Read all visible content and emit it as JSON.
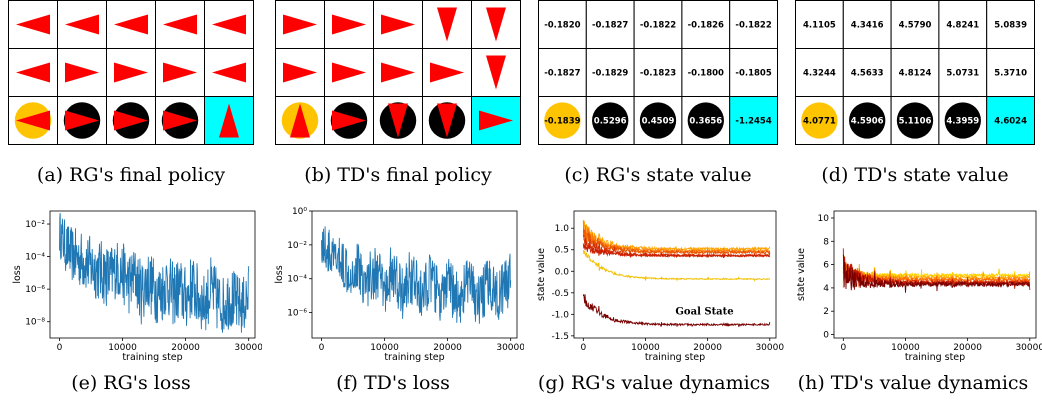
{
  "captions": {
    "a": "(a) RG's final policy",
    "b": "(b) TD's final policy",
    "c": "(c) RG's state value",
    "d": "(d) TD's state value",
    "e": "(e) RG's loss",
    "f": "(f) TD's loss",
    "g": "(g) RG's value dynamics",
    "h": "(h) TD's value dynamics"
  },
  "colors": {
    "arrow": "#ff0000",
    "goal": "#00ffff",
    "start": "#ffc400",
    "cliff": "#000000",
    "loss_line": "#1f77b4"
  },
  "chart_data": [
    {
      "id": "a",
      "type": "table",
      "title": "",
      "rows": 3,
      "cols": 5,
      "arrows": [
        [
          "left",
          "left",
          "left",
          "left",
          "left"
        ],
        [
          "left",
          "right",
          "right",
          "right",
          "left"
        ],
        [
          "left",
          "right",
          "right",
          "right",
          "up"
        ]
      ],
      "cell_kind": [
        [
          "plain",
          "plain",
          "plain",
          "plain",
          "plain"
        ],
        [
          "plain",
          "plain",
          "plain",
          "plain",
          "plain"
        ],
        [
          "start",
          "cliff",
          "cliff",
          "cliff",
          "goal"
        ]
      ]
    },
    {
      "id": "b",
      "type": "table",
      "title": "",
      "rows": 3,
      "cols": 5,
      "arrows": [
        [
          "right",
          "right",
          "right",
          "down",
          "down"
        ],
        [
          "right",
          "right",
          "right",
          "right",
          "down"
        ],
        [
          "up",
          "right",
          "down",
          "down",
          "right"
        ]
      ],
      "cell_kind": [
        [
          "plain",
          "plain",
          "plain",
          "plain",
          "plain"
        ],
        [
          "plain",
          "plain",
          "plain",
          "plain",
          "plain"
        ],
        [
          "start",
          "cliff",
          "cliff",
          "cliff",
          "goal"
        ]
      ]
    },
    {
      "id": "c",
      "type": "table",
      "title": "",
      "values": [
        [
          "-0.1820",
          "-0.1827",
          "-0.1822",
          "-0.1826",
          "-0.1822"
        ],
        [
          "-0.1827",
          "-0.1829",
          "-0.1823",
          "-0.1800",
          "-0.1805"
        ],
        [
          "-0.1839",
          "0.5296",
          "0.4509",
          "0.3656",
          "-1.2454"
        ]
      ],
      "cell_kind": [
        [
          "plain",
          "plain",
          "plain",
          "plain",
          "plain"
        ],
        [
          "plain",
          "plain",
          "plain",
          "plain",
          "plain"
        ],
        [
          "start",
          "cliff",
          "cliff",
          "cliff",
          "goal"
        ]
      ]
    },
    {
      "id": "d",
      "type": "table",
      "title": "",
      "values": [
        [
          "4.1105",
          "4.3416",
          "4.5790",
          "4.8241",
          "5.0839"
        ],
        [
          "4.3244",
          "4.5633",
          "4.8124",
          "5.0731",
          "5.3710"
        ],
        [
          "4.0771",
          "4.5906",
          "5.1106",
          "4.3959",
          "4.6024"
        ]
      ],
      "cell_kind": [
        [
          "plain",
          "plain",
          "plain",
          "plain",
          "plain"
        ],
        [
          "plain",
          "plain",
          "plain",
          "plain",
          "plain"
        ],
        [
          "start",
          "cliff",
          "cliff",
          "cliff",
          "goal"
        ]
      ]
    },
    {
      "id": "e",
      "type": "line",
      "title": "",
      "xlabel": "training step",
      "ylabel": "loss",
      "xlim": [
        -1500,
        31000
      ],
      "ylim_log10": [
        -9,
        -1.2
      ],
      "xticks": [
        0,
        10000,
        20000,
        30000
      ],
      "yticks": [
        {
          "label": "10⁻²",
          "v": -2
        },
        {
          "label": "10⁻⁴",
          "v": -4
        },
        {
          "label": "10⁻⁶",
          "v": -6
        },
        {
          "label": "10⁻⁸",
          "v": -8
        }
      ],
      "series": [
        {
          "x": [
            0,
            1000,
            2000,
            3000,
            4000,
            5000,
            6000,
            7000,
            8000,
            9000,
            10000,
            11000,
            12000,
            13000,
            14000,
            15000,
            16000,
            17000,
            18000,
            19000,
            20000,
            21000,
            22000,
            23000,
            24000,
            25000,
            26000,
            27000,
            28000,
            29000,
            30000
          ],
          "log10_y": [
            -2.5,
            -3.4,
            -3.9,
            -4.1,
            -4.3,
            -4.6,
            -4.8,
            -5.0,
            -5.3,
            -4.7,
            -5.0,
            -5.6,
            -5.2,
            -6.2,
            -5.4,
            -6.0,
            -6.3,
            -5.6,
            -6.3,
            -6.0,
            -6.6,
            -5.8,
            -6.5,
            -6.9,
            -6.0,
            -6.7,
            -7.0,
            -6.4,
            -6.9,
            -7.1,
            -6.4
          ],
          "spread": [
            1.4,
            1.6,
            1.7,
            1.8,
            1.8,
            1.9,
            1.9,
            2.0,
            2.0,
            1.8,
            1.9,
            2.0,
            1.8,
            2.0,
            1.9,
            2.0,
            2.0,
            1.9,
            2.0,
            2.0,
            2.0,
            2.0,
            2.0,
            1.8,
            2.0,
            2.0,
            1.8,
            2.0,
            1.9,
            1.8,
            2.0
          ]
        }
      ]
    },
    {
      "id": "f",
      "type": "line",
      "title": "",
      "xlabel": "training step",
      "ylabel": "loss",
      "xlim": [
        -1500,
        31000
      ],
      "ylim_log10": [
        -7.5,
        0
      ],
      "xticks": [
        0,
        10000,
        20000,
        30000
      ],
      "yticks": [
        {
          "label": "10⁰",
          "v": 0
        },
        {
          "label": "10⁻²",
          "v": -2
        },
        {
          "label": "10⁻⁴",
          "v": -4
        },
        {
          "label": "10⁻⁶",
          "v": -6
        }
      ],
      "series": [
        {
          "x": [
            0,
            1000,
            2000,
            3000,
            4000,
            5000,
            6000,
            7000,
            8000,
            9000,
            10000,
            11000,
            12000,
            13000,
            14000,
            15000,
            16000,
            17000,
            18000,
            19000,
            20000,
            21000,
            22000,
            23000,
            24000,
            25000,
            26000,
            27000,
            28000,
            29000,
            30000
          ],
          "log10_y": [
            -1.8,
            -2.4,
            -2.9,
            -3.0,
            -3.3,
            -3.6,
            -3.2,
            -4.5,
            -3.6,
            -3.8,
            -4.8,
            -3.7,
            -4.2,
            -5.0,
            -3.8,
            -4.4,
            -5.2,
            -4.0,
            -4.5,
            -5.3,
            -4.3,
            -4.9,
            -5.3,
            -4.1,
            -4.8,
            -5.4,
            -4.6,
            -4.3,
            -5.1,
            -4.5,
            -3.9
          ],
          "spread": [
            1.3,
            1.4,
            1.4,
            1.5,
            1.5,
            1.5,
            1.6,
            1.5,
            1.6,
            1.6,
            1.5,
            1.6,
            1.6,
            1.5,
            1.6,
            1.6,
            1.5,
            1.6,
            1.6,
            1.5,
            1.6,
            1.6,
            1.5,
            1.6,
            1.6,
            1.5,
            1.6,
            1.6,
            1.5,
            1.6,
            1.6
          ]
        }
      ]
    },
    {
      "id": "g",
      "type": "line",
      "title": "",
      "xlabel": "training step",
      "ylabel": "state value",
      "xlim": [
        -1500,
        31000
      ],
      "ylim": [
        -1.55,
        1.4
      ],
      "xticks": [
        0,
        10000,
        20000,
        30000
      ],
      "yticks": [
        1.0,
        0.5,
        0.0,
        -0.5,
        -1.0,
        -1.5
      ],
      "annotation": {
        "text": "Goal State",
        "x": 19500,
        "y": -1.0
      },
      "series": [
        {
          "color": "#ffa500",
          "start": 1.0,
          "end": 0.52,
          "noise": 0.07
        },
        {
          "color": "#ff7a00",
          "start": 0.95,
          "end": 0.47,
          "noise": 0.07
        },
        {
          "color": "#e85500",
          "start": 0.9,
          "end": 0.44,
          "noise": 0.07
        },
        {
          "color": "#d33000",
          "start": 0.75,
          "end": 0.37,
          "noise": 0.06
        },
        {
          "color": "#cc1e00",
          "start": 0.6,
          "end": 0.36,
          "noise": 0.05
        },
        {
          "color": "#f0c000",
          "start": 0.5,
          "end": -0.18,
          "noise": 0.03
        },
        {
          "color": "#7a0000",
          "start": -0.6,
          "end": -1.24,
          "noise": 0.05
        }
      ]
    },
    {
      "id": "h",
      "type": "line",
      "title": "",
      "xlabel": "training step",
      "ylabel": "state value",
      "xlim": [
        -1500,
        31000
      ],
      "ylim": [
        -0.3,
        10.6
      ],
      "xticks": [
        0,
        10000,
        20000,
        30000
      ],
      "yticks": [
        0,
        2,
        4,
        6,
        8,
        10
      ],
      "series": [
        {
          "color": "#ffd200",
          "start": 5.2,
          "end": 5.1,
          "noise": 0.25
        },
        {
          "color": "#ffa500",
          "start": 5.4,
          "end": 4.9,
          "noise": 0.3
        },
        {
          "color": "#ff6a00",
          "start": 5.6,
          "end": 4.7,
          "noise": 0.35
        },
        {
          "color": "#e03000",
          "start": 5.5,
          "end": 4.5,
          "noise": 0.35
        },
        {
          "color": "#c01800",
          "start": 5.8,
          "end": 4.4,
          "noise": 0.4
        },
        {
          "color": "#7a0000",
          "start": 5.0,
          "end": 4.3,
          "noise": 0.5
        }
      ]
    }
  ]
}
